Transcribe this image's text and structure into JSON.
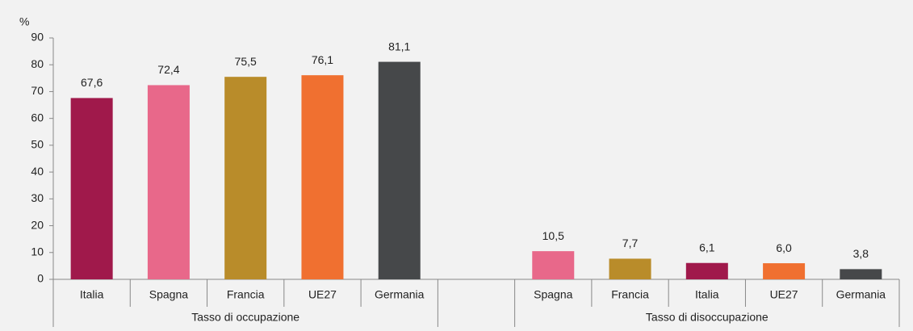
{
  "chart_data": {
    "type": "bar",
    "y_label": "%",
    "ylim": [
      0,
      90
    ],
    "yticks": [
      0,
      10,
      20,
      30,
      40,
      50,
      60,
      70,
      80,
      90
    ],
    "grid": false,
    "groups": [
      {
        "label": "Tasso di occupazione",
        "categories": [
          "Italia",
          "Spagna",
          "Francia",
          "UE27",
          "Germania"
        ],
        "values": [
          67.6,
          72.4,
          75.5,
          76.1,
          81.1
        ],
        "value_labels": [
          "67,6",
          "72,4",
          "75,5",
          "76,1",
          "81,1"
        ],
        "colors": [
          "#a0194b",
          "#e8688a",
          "#b98c2a",
          "#f07030",
          "#46484a"
        ]
      },
      {
        "label": "Tasso di disoccupazione",
        "categories": [
          "Spagna",
          "Francia",
          "Italia",
          "UE27",
          "Germania"
        ],
        "values": [
          10.5,
          7.7,
          6.1,
          6.0,
          3.8
        ],
        "value_labels": [
          "10,5",
          "7,7",
          "6,1",
          "6,0",
          "3,8"
        ],
        "colors": [
          "#e8688a",
          "#b98c2a",
          "#a0194b",
          "#f07030",
          "#46484a"
        ]
      }
    ]
  }
}
